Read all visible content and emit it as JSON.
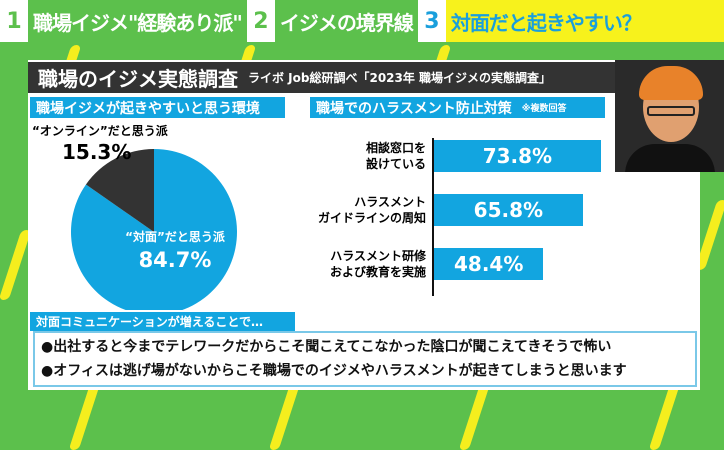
{
  "tabs": [
    {
      "num": "1",
      "label": "職場イジメ\"経験あり派\""
    },
    {
      "num": "2",
      "label": "イジメの境界線"
    },
    {
      "num": "3",
      "label": "対面だと起きやすい？"
    }
  ],
  "header": {
    "title": "職場のイジメ実態調査",
    "source": "ライボ Job総研調べ「2023年 職場イジメの実態調査」"
  },
  "colors": {
    "green": "#5cc04c",
    "blue": "#12a5e0",
    "yellow": "#f7f21c",
    "dark": "#333333"
  },
  "chart_data": [
    {
      "type": "pie",
      "title": "職場イジメが起きやすいと思う環境",
      "slices": [
        {
          "label": "“対面”だと思う派",
          "value": 84.7,
          "display": "84.7%",
          "color": "#12a5e0"
        },
        {
          "label": "“オンライン”だと思う派",
          "value": 15.3,
          "display": "15.3%",
          "color": "#333333"
        }
      ]
    },
    {
      "type": "bar",
      "orientation": "horizontal",
      "title": "職場でのハラスメント防止対策",
      "note": "※複数回答",
      "categories": [
        "相談窓口を\n設けている",
        "ハラスメント\nガイドラインの周知",
        "ハラスメント研修\nおよび教育を実施"
      ],
      "values": [
        73.8,
        65.8,
        48.4
      ],
      "labels": [
        "73.8%",
        "65.8%",
        "48.4%"
      ],
      "xlim": [
        0,
        100
      ]
    }
  ],
  "comments": {
    "title": "対面コミュニケーションが増えることで…",
    "items": [
      "●出社すると今までテレワークだからこそ聞こえてこなかった陰口が聞こえてきそうで怖い",
      "●オフィスは逃げ場がないからこそ職場でのイジメやハラスメントが起きてしまうと思います"
    ]
  }
}
